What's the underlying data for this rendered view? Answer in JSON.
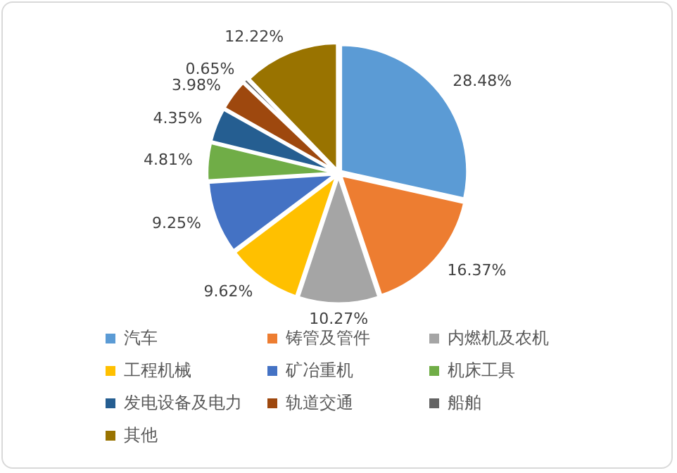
{
  "chart_data": {
    "type": "pie",
    "categories": [
      "汽车",
      "铸管及管件",
      "内燃机及农机",
      "工程机械",
      "矿冶重机",
      "机床工具",
      "发电设备及电力",
      "轨道交通",
      "船舶",
      "其他"
    ],
    "values": [
      28.48,
      16.37,
      10.27,
      9.62,
      9.25,
      4.81,
      4.35,
      3.98,
      0.65,
      12.22
    ],
    "value_labels": [
      "28.48%",
      "16.37%",
      "10.27%",
      "9.62%",
      "9.25%",
      "4.81%",
      "4.35%",
      "3.98%",
      "0.65%",
      "12.22%"
    ],
    "colors": [
      "#5b9bd5",
      "#ed7d31",
      "#a5a5a5",
      "#ffc000",
      "#4472c4",
      "#70ad47",
      "#255e91",
      "#9e480e",
      "#636363",
      "#997300"
    ],
    "legend": "bottom"
  }
}
